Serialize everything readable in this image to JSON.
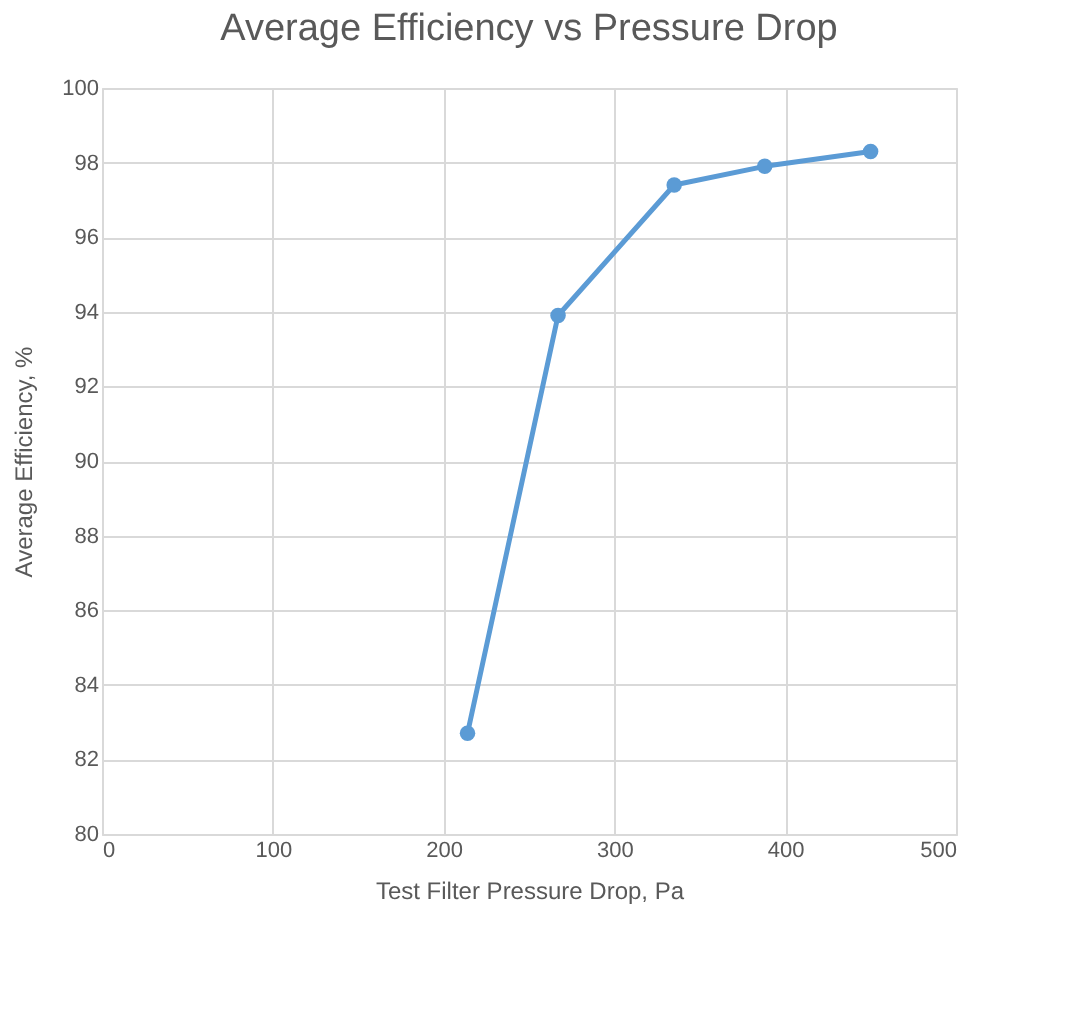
{
  "chart_data": {
    "type": "line",
    "title": "Average Efficiency vs Pressure Drop",
    "xlabel": "Test Filter Pressure Drop, Pa",
    "ylabel": "Average Efficiency, %",
    "x": [
      214,
      267,
      335,
      388,
      450
    ],
    "series": [
      {
        "color": "#5b9bd5",
        "values": [
          82.7,
          93.9,
          97.4,
          97.9,
          98.3
        ]
      }
    ],
    "xlim": [
      0,
      500
    ],
    "xticks": [
      0,
      100,
      200,
      300,
      400,
      500
    ],
    "ylim": [
      80,
      100
    ],
    "yticks": [
      80,
      82,
      84,
      86,
      88,
      90,
      92,
      94,
      96,
      98,
      100
    ],
    "grid": true,
    "marker": "circle",
    "line_style": "solid"
  }
}
